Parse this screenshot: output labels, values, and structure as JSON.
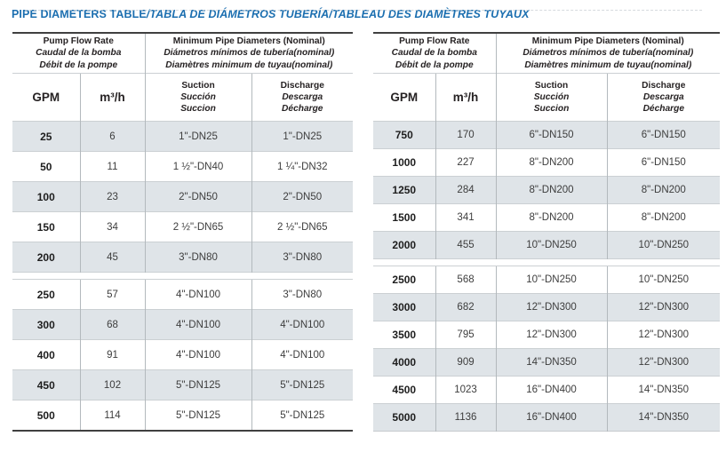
{
  "title": {
    "main": "PIPE DIAMETERS TABLE",
    "translations": "/TABLA DE DIÁMETROS TUBERÍA/TABLEAU DES DIAMÈTRES TUYAUX"
  },
  "header": {
    "flow_group": [
      "Pump Flow Rate",
      "Caudal de la bomba",
      "Débit de la pompe"
    ],
    "diameter_group": [
      "Minimum Pipe Diameters (Nominal)",
      "Diámetros mínimos de tubería(nominal)",
      "Diamètres minimum de tuyau(nominal)"
    ],
    "col_gpm": "GPM",
    "col_m3h": "m³/h",
    "col_suction": [
      "Suction",
      "Succión",
      "Succion"
    ],
    "col_discharge": [
      "Discharge",
      "Descarga",
      "Décharge"
    ]
  },
  "colors": {
    "title_blue": "#1c6fb0",
    "row_shade": "#dfe4e8",
    "dark_border": "#404040"
  },
  "tables": [
    {
      "name": "low-flow",
      "sections": [
        {
          "rows": [
            [
              "25",
              "6",
              "1\"-DN25",
              "1\"-DN25"
            ],
            [
              "50",
              "11",
              "1 ½\"-DN40",
              "1 ¼\"-DN32"
            ],
            [
              "100",
              "23",
              "2\"-DN50",
              "2\"-DN50"
            ],
            [
              "150",
              "34",
              "2 ½\"-DN65",
              "2 ½\"-DN65"
            ],
            [
              "200",
              "45",
              "3\"-DN80",
              "3\"-DN80"
            ]
          ]
        },
        {
          "rows": [
            [
              "250",
              "57",
              "4\"-DN100",
              "3\"-DN80"
            ],
            [
              "300",
              "68",
              "4\"-DN100",
              "4\"-DN100"
            ],
            [
              "400",
              "91",
              "4\"-DN100",
              "4\"-DN100"
            ],
            [
              "450",
              "102",
              "5\"-DN125",
              "5\"-DN125"
            ],
            [
              "500",
              "114",
              "5\"-DN125",
              "5\"-DN125"
            ]
          ]
        }
      ]
    },
    {
      "name": "high-flow",
      "sections": [
        {
          "rows": [
            [
              "750",
              "170",
              "6\"-DN150",
              "6\"-DN150"
            ],
            [
              "1000",
              "227",
              "8\"-DN200",
              "6\"-DN150"
            ],
            [
              "1250",
              "284",
              "8\"-DN200",
              "8\"-DN200"
            ],
            [
              "1500",
              "341",
              "8\"-DN200",
              "8\"-DN200"
            ],
            [
              "2000",
              "455",
              "10\"-DN250",
              "10\"-DN250"
            ]
          ]
        },
        {
          "rows": [
            [
              "2500",
              "568",
              "10\"-DN250",
              "10\"-DN250"
            ],
            [
              "3000",
              "682",
              "12\"-DN300",
              "12\"-DN300"
            ],
            [
              "3500",
              "795",
              "12\"-DN300",
              "12\"-DN300"
            ],
            [
              "4000",
              "909",
              "14\"-DN350",
              "12\"-DN300"
            ],
            [
              "4500",
              "1023",
              "16\"-DN400",
              "14\"-DN350"
            ],
            [
              "5000",
              "1136",
              "16\"-DN400",
              "14\"-DN350"
            ]
          ]
        }
      ]
    }
  ]
}
